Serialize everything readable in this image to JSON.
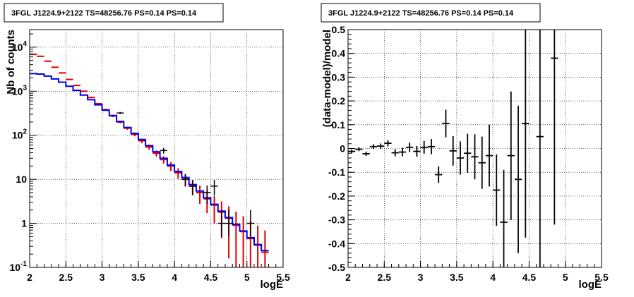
{
  "chart_data": [
    {
      "type": "line",
      "title": "3FGL J1224.9+2122 TS=48256.76 PS=0.14 PS=0.14",
      "xlabel": "logE",
      "ylabel": "Nb of counts",
      "xlim": [
        2,
        5.5
      ],
      "ylim": [
        0.1,
        25000
      ],
      "yscale": "log",
      "grid": true,
      "x_ticks": [
        "2",
        "2.5",
        "3",
        "3.5",
        "4",
        "4.5",
        "5",
        "5.5"
      ],
      "y_ticks": [
        "10^-1",
        "1",
        "10",
        "10^2",
        "10^3",
        "10^4"
      ],
      "x": [
        2.05,
        2.15,
        2.25,
        2.35,
        2.45,
        2.55,
        2.65,
        2.75,
        2.85,
        2.95,
        3.05,
        3.15,
        3.25,
        3.35,
        3.45,
        3.55,
        3.65,
        3.75,
        3.85,
        3.95,
        4.05,
        4.15,
        4.25,
        4.35,
        4.45,
        4.55,
        4.65,
        4.75,
        4.85,
        4.95,
        5.05,
        5.15,
        5.25
      ],
      "series": [
        {
          "name": "",
          "color": "#dd0000",
          "style": "step-errorbar",
          "values": [
            6900,
            6200,
            4800,
            3500,
            2600,
            1850,
            1350,
            1000,
            720,
            520,
            380,
            275,
            200,
            145,
            105,
            75,
            54,
            39,
            28,
            20,
            14,
            10,
            7,
            5,
            3.6,
            2.6,
            1.8,
            1.3,
            0.9,
            0.65,
            0.45,
            0.32,
            0.22
          ]
        },
        {
          "name": "",
          "color": "#0000ee",
          "style": "step",
          "values": [
            2500,
            2450,
            2200,
            1900,
            1600,
            1300,
            1050,
            820,
            640,
            490,
            370,
            280,
            205,
            150,
            110,
            80,
            58,
            42,
            30,
            21,
            15,
            11,
            7.6,
            5.4,
            3.8,
            2.7,
            1.9,
            1.35,
            0.95,
            0.67,
            0.47,
            0.33,
            0.24
          ]
        },
        {
          "name": "",
          "color": "#000000",
          "style": "errorbar",
          "values": [
            null,
            null,
            null,
            null,
            null,
            null,
            null,
            null,
            null,
            null,
            null,
            null,
            320,
            null,
            null,
            null,
            null,
            null,
            45,
            null,
            null,
            10,
            7,
            null,
            5,
            7,
            1,
            1,
            null,
            null,
            1,
            null,
            null
          ]
        }
      ]
    },
    {
      "type": "scatter",
      "title": "3FGL J1224.9+2122 TS=48256.76 PS=0.14 PS=0.14",
      "xlabel": "logE",
      "ylabel": "(data-model)/model",
      "xlim": [
        2,
        5.5
      ],
      "ylim": [
        -0.5,
        0.5
      ],
      "grid": true,
      "x_ticks": [
        "2",
        "2.5",
        "3",
        "3.5",
        "4",
        "4.5",
        "5",
        "5.5"
      ],
      "y_ticks": [
        "-0.5",
        "-0.4",
        "-0.3",
        "-0.2",
        "-0.1",
        "0",
        "0.1",
        "0.2",
        "0.3",
        "0.4",
        "0.5"
      ],
      "points": [
        {
          "x": 2.05,
          "y": -0.012,
          "err": 0.008
        },
        {
          "x": 2.15,
          "y": -0.003,
          "err": 0.008
        },
        {
          "x": 2.25,
          "y": -0.022,
          "err": 0.009
        },
        {
          "x": 2.35,
          "y": 0.008,
          "err": 0.01
        },
        {
          "x": 2.45,
          "y": 0.01,
          "err": 0.011
        },
        {
          "x": 2.55,
          "y": 0.022,
          "err": 0.013
        },
        {
          "x": 2.65,
          "y": -0.018,
          "err": 0.015
        },
        {
          "x": 2.75,
          "y": -0.015,
          "err": 0.018
        },
        {
          "x": 2.85,
          "y": 0.005,
          "err": 0.02
        },
        {
          "x": 2.95,
          "y": -0.012,
          "err": 0.023
        },
        {
          "x": 3.05,
          "y": 0.005,
          "err": 0.027
        },
        {
          "x": 3.15,
          "y": 0.008,
          "err": 0.032
        },
        {
          "x": 3.25,
          "y": -0.11,
          "err": 0.035
        },
        {
          "x": 3.35,
          "y": 0.105,
          "err": 0.058
        },
        {
          "x": 3.45,
          "y": -0.01,
          "err": 0.062
        },
        {
          "x": 3.55,
          "y": -0.04,
          "err": 0.07
        },
        {
          "x": 3.65,
          "y": -0.02,
          "err": 0.082
        },
        {
          "x": 3.75,
          "y": -0.035,
          "err": 0.095
        },
        {
          "x": 3.85,
          "y": -0.06,
          "err": 0.11
        },
        {
          "x": 3.95,
          "y": -0.03,
          "err": 0.13
        },
        {
          "x": 4.05,
          "y": -0.175,
          "err": 0.15
        },
        {
          "x": 4.15,
          "y": -0.31,
          "err": 0.22
        },
        {
          "x": 4.25,
          "y": -0.03,
          "err": 0.27
        },
        {
          "x": 4.35,
          "y": -0.13,
          "err": 0.31
        },
        {
          "x": 4.45,
          "y": 0.105,
          "err": 0.48
        },
        {
          "x": 4.65,
          "y": 0.05,
          "err": 0.7
        },
        {
          "x": 4.85,
          "y": 0.38,
          "err": 0.7
        }
      ]
    }
  ]
}
